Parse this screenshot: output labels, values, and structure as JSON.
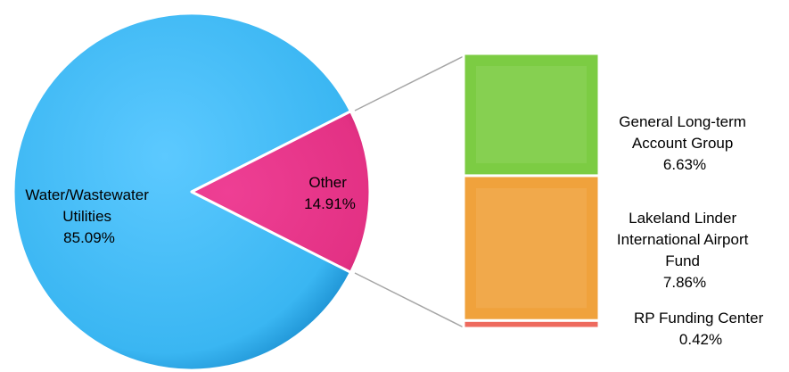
{
  "chart_data": {
    "type": "pie",
    "pie": {
      "slices": [
        {
          "label": "Water/Wastewater Utilities",
          "label_lines": [
            "Water/Wastewater",
            "Utilities"
          ],
          "value_label": "85.09%",
          "value": 85.09,
          "color": "#3fb8f5"
        },
        {
          "label": "Other",
          "label_lines": [
            "Other"
          ],
          "value_label": "14.91%",
          "value": 14.91,
          "color": "#e8338a"
        }
      ]
    },
    "breakdown": {
      "type": "bar",
      "of": "Other",
      "segments": [
        {
          "label": "General Long-term Account Group",
          "label_lines": [
            "General Long-term",
            "Account Group"
          ],
          "value_label": "6.63%",
          "value": 6.63,
          "color": "#7ccc43"
        },
        {
          "label": "Lakeland Linder International Airport Fund",
          "label_lines": [
            "Lakeland Linder",
            "International Airport",
            "Fund"
          ],
          "value_label": "7.86%",
          "value": 7.86,
          "color": "#f0a23c"
        },
        {
          "label": "RP Funding Center",
          "label_lines": [
            "RP Funding Center"
          ],
          "value_label": "0.42%",
          "value": 0.42,
          "color": "#ee6a5e"
        }
      ]
    }
  }
}
